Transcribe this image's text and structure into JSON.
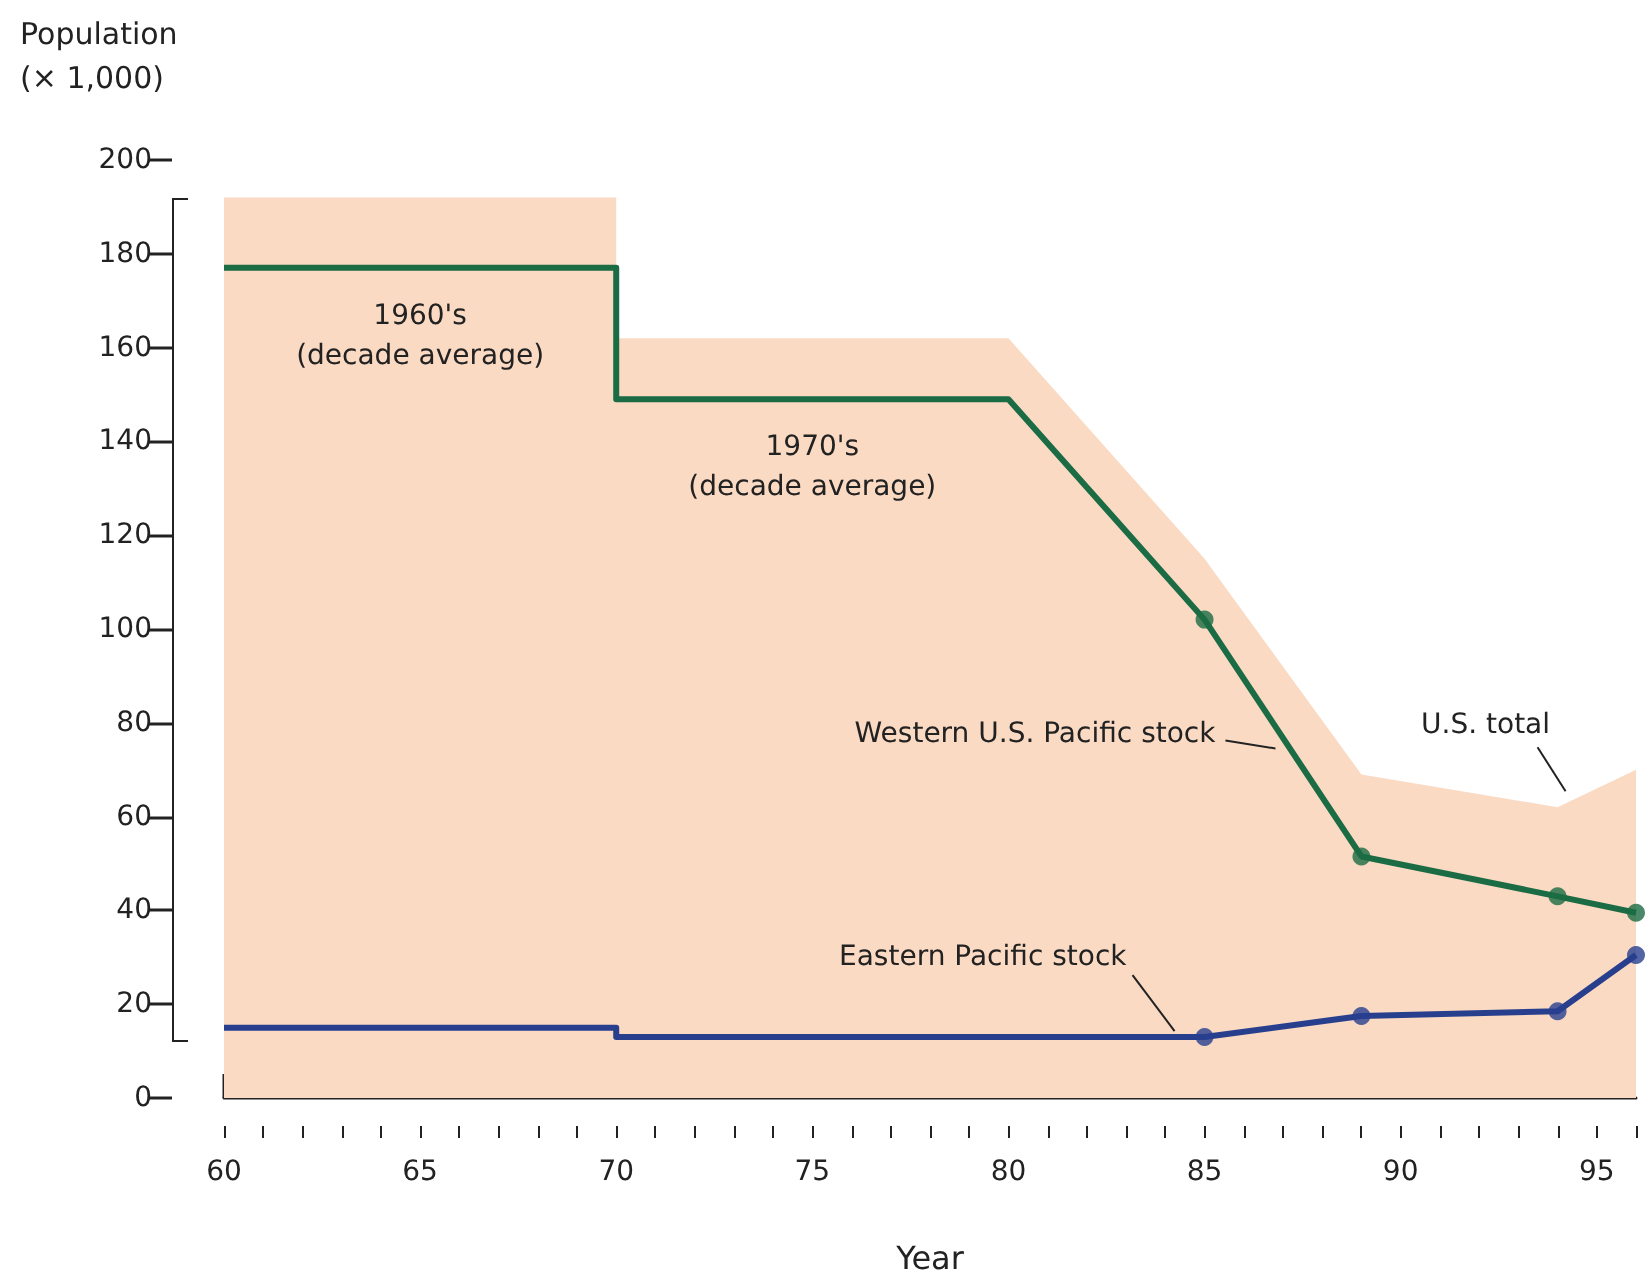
{
  "chart_data": {
    "type": "line",
    "xlabel": "Year",
    "ylabel": "Population\n(× 1,000)",
    "xlim": [
      60,
      96
    ],
    "xticks": [
      60,
      65,
      70,
      75,
      80,
      85,
      90,
      95
    ],
    "ylim": [
      0,
      200
    ],
    "yticks": [
      0,
      20,
      40,
      60,
      80,
      100,
      120,
      140,
      160,
      180,
      200
    ],
    "grid": false,
    "legend": false,
    "marker": "none",
    "annotations": [
      {
        "text": "1960's\n(decade average)",
        "x": 65,
        "y": 177
      },
      {
        "text": "1970's\n(decade average)",
        "x": 75,
        "y": 149
      }
    ],
    "series": [
      {
        "name": "U.S. total",
        "type": "area",
        "color": "#fadac3",
        "x": [
          60,
          70,
          70,
          80,
          85,
          89,
          94,
          96
        ],
        "values": [
          192,
          192,
          162,
          162,
          115,
          69,
          62,
          70
        ]
      },
      {
        "name": "Western U.S. Pacific stock",
        "color": "#1b6b44",
        "x": [
          60,
          70,
          70,
          80,
          85,
          89,
          94,
          96
        ],
        "values": [
          177,
          177,
          149,
          149,
          102,
          51.5,
          43,
          39.5
        ]
      },
      {
        "type": "scatter",
        "marker": "circle",
        "color": "#1b6b44",
        "x": [
          85,
          89,
          94,
          96
        ],
        "values": [
          102,
          51.5,
          43,
          39.5
        ]
      },
      {
        "name": "Eastern Pacific stock",
        "color": "#283f8e",
        "x": [
          60,
          70,
          70,
          85,
          89,
          94,
          96
        ],
        "values": [
          15,
          15,
          13,
          13,
          17.5,
          18.5,
          30.5
        ]
      },
      {
        "type": "scatter",
        "marker": "circle",
        "color": "#283f8e",
        "x": [
          85,
          89,
          94,
          96
        ],
        "values": [
          13,
          17.5,
          18.5,
          30.5
        ]
      }
    ]
  }
}
